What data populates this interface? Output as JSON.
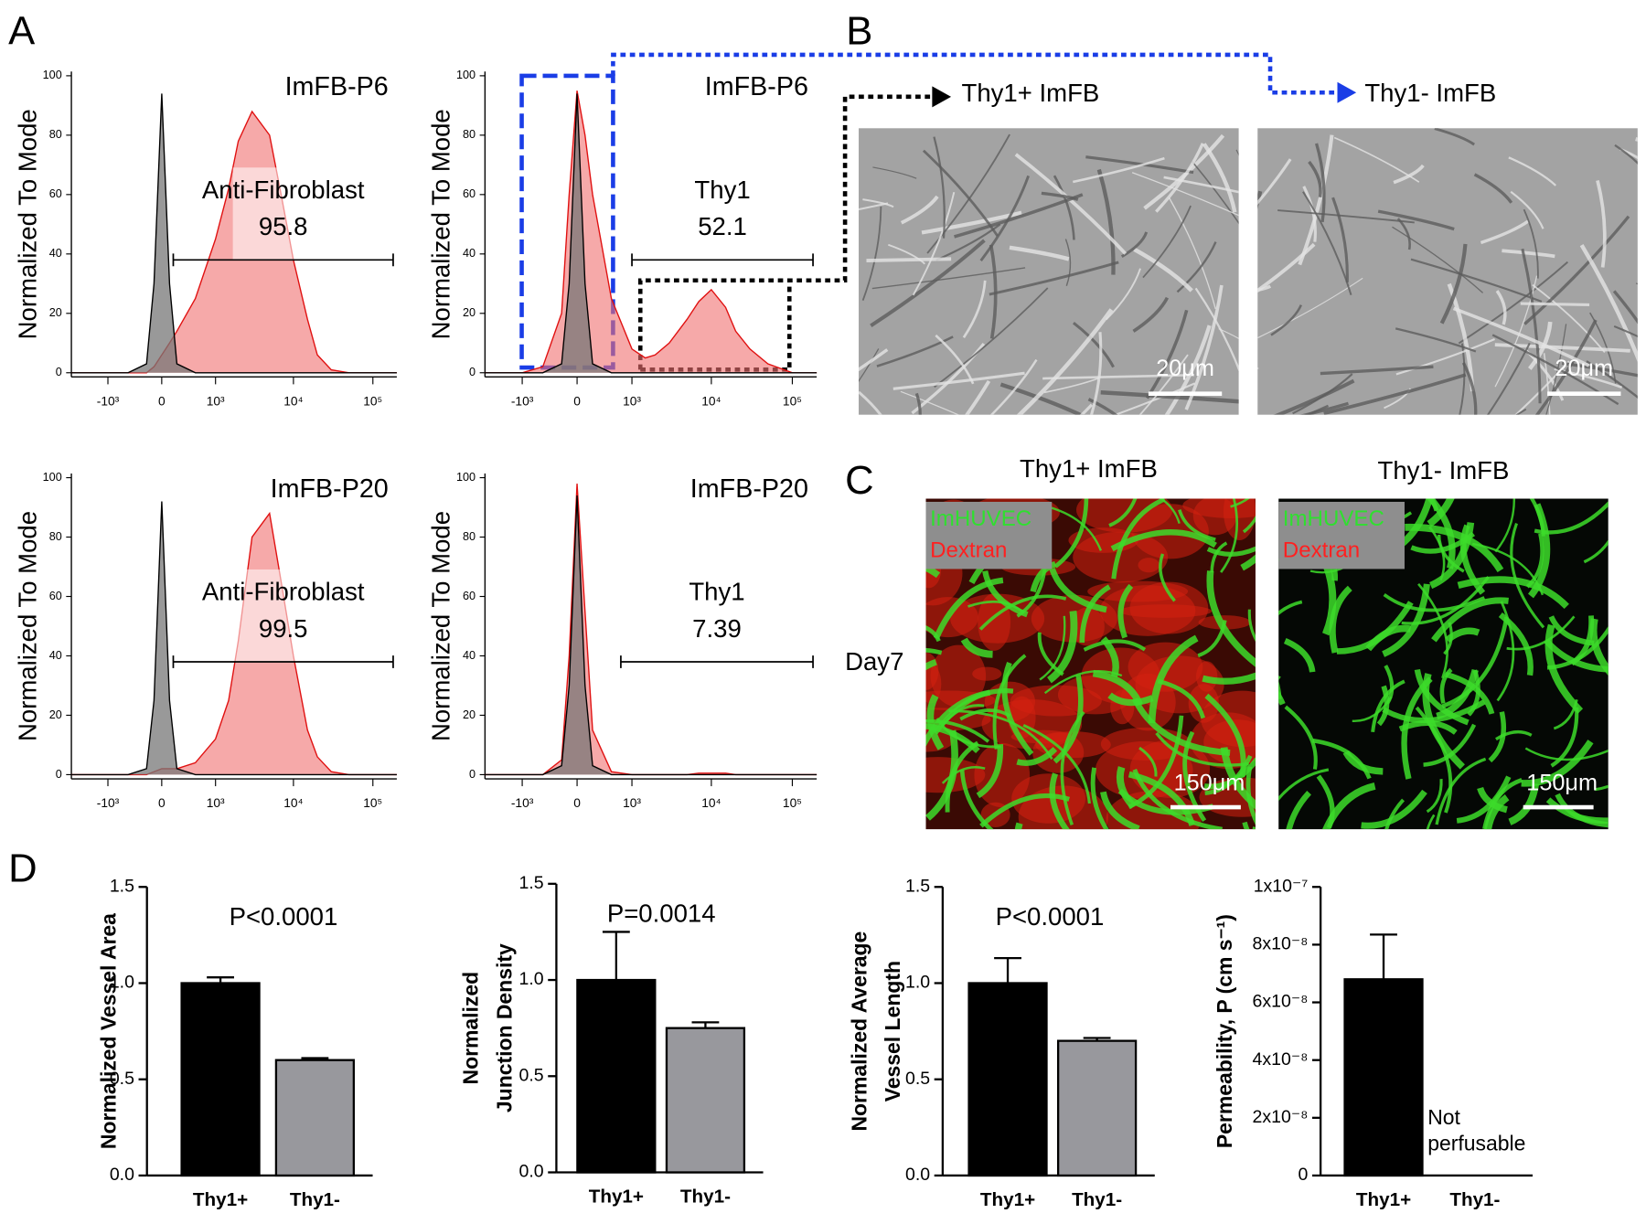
{
  "panels": [
    "A",
    "B",
    "C",
    "D"
  ],
  "phase_contrast": {
    "items": [
      {
        "title": "Thy1+ ImFB",
        "scale_bar": "20μm"
      },
      {
        "title": "Thy1- ImFB",
        "scale_bar": "20μm"
      }
    ]
  },
  "fluorescence": {
    "row_label": "Day7",
    "items": [
      {
        "title": "Thy1+ ImFB",
        "legend": [
          "ImHUVEC",
          "Dextran"
        ],
        "scale_bar": "150μm"
      },
      {
        "title": "Thy1- ImFB",
        "legend": [
          "ImHUVEC",
          "Dextran"
        ],
        "scale_bar": "150μm"
      }
    ]
  },
  "chart_data": [
    {
      "type": "area",
      "title": "ImFB-P6",
      "ylabel": "Normalized To Mode",
      "xscale": "asinh",
      "xlim": [
        -3000,
        200000
      ],
      "xticks": [
        {
          "value": -1000,
          "label": "-10³"
        },
        0,
        {
          "value": 1000,
          "label": "10³"
        },
        {
          "value": 10000,
          "label": "10⁴"
        },
        {
          "value": 100000,
          "label": "10⁵"
        }
      ],
      "ylim": [
        0,
        100
      ],
      "yticks": [
        0,
        20,
        40,
        60,
        80,
        100
      ],
      "x": [
        -3000,
        -1000,
        -500,
        -200,
        -100,
        0,
        100,
        200,
        500,
        1000,
        1500,
        2000,
        3000,
        5000,
        7000,
        10000,
        15000,
        20000,
        30000,
        50000,
        100000,
        200000
      ],
      "series": [
        {
          "color": "#f07070",
          "values": [
            0,
            0,
            0,
            0,
            2,
            6,
            10,
            14,
            25,
            45,
            62,
            78,
            88,
            80,
            60,
            38,
            18,
            6,
            1,
            0,
            0,
            0
          ]
        },
        {
          "color": "#777777",
          "values": [
            0,
            0,
            0,
            3,
            30,
            94,
            30,
            3,
            0,
            0,
            0,
            0,
            0,
            0,
            0,
            0,
            0,
            0,
            0,
            0,
            0,
            0
          ]
        }
      ],
      "gate": [
        150,
        180000
      ],
      "gate_label": "Anti-Fibroblast",
      "gate_value": 95.8
    },
    {
      "type": "area",
      "title": "ImFB-P6",
      "ylabel": "Normalized To Mode",
      "xscale": "asinh",
      "xlim": [
        -3000,
        200000
      ],
      "xticks": [
        {
          "value": -1000,
          "label": "-10³"
        },
        0,
        {
          "value": 1000,
          "label": "10³"
        },
        {
          "value": 10000,
          "label": "10⁴"
        },
        {
          "value": 100000,
          "label": "10⁵"
        }
      ],
      "ylim": [
        0,
        100
      ],
      "yticks": [
        0,
        20,
        40,
        60,
        80,
        100
      ],
      "x": [
        -3000,
        -1000,
        -500,
        -200,
        -100,
        0,
        100,
        200,
        500,
        1000,
        1500,
        2000,
        3000,
        5000,
        7000,
        10000,
        15000,
        20000,
        30000,
        50000,
        100000,
        200000
      ],
      "series": [
        {
          "color": "#f07070",
          "values": [
            0,
            0,
            2,
            20,
            60,
            95,
            80,
            60,
            25,
            8,
            5,
            6,
            10,
            18,
            24,
            28,
            22,
            14,
            8,
            3,
            0,
            0
          ]
        },
        {
          "color": "#777777",
          "values": [
            0,
            0,
            0,
            3,
            30,
            94,
            30,
            3,
            0,
            0,
            0,
            0,
            0,
            0,
            0,
            0,
            0,
            0,
            0,
            0,
            0,
            0
          ]
        }
      ],
      "gate": [
        1000,
        180000
      ],
      "gate_label": "Thy1",
      "gate_value": 52.1
    },
    {
      "type": "area",
      "title": "ImFB-P20",
      "ylabel": "Normalized To Mode",
      "xscale": "asinh",
      "xlim": [
        -3000,
        200000
      ],
      "xticks": [
        {
          "value": -1000,
          "label": "-10³"
        },
        0,
        {
          "value": 1000,
          "label": "10³"
        },
        {
          "value": 10000,
          "label": "10⁴"
        },
        {
          "value": 100000,
          "label": "10⁵"
        }
      ],
      "ylim": [
        0,
        100
      ],
      "yticks": [
        0,
        20,
        40,
        60,
        80,
        100
      ],
      "x": [
        -3000,
        -1000,
        -500,
        -200,
        -100,
        0,
        100,
        200,
        500,
        1000,
        1500,
        2000,
        3000,
        5000,
        7000,
        10000,
        15000,
        20000,
        30000,
        50000,
        100000,
        200000
      ],
      "series": [
        {
          "color": "#f07070",
          "values": [
            0,
            0,
            0,
            0,
            1,
            2,
            2,
            2,
            4,
            12,
            25,
            45,
            80,
            88,
            65,
            40,
            15,
            6,
            1,
            0,
            0,
            0
          ]
        },
        {
          "color": "#777777",
          "values": [
            0,
            0,
            0,
            2,
            25,
            92,
            25,
            2,
            0,
            0,
            0,
            0,
            0,
            0,
            0,
            0,
            0,
            0,
            0,
            0,
            0,
            0
          ]
        }
      ],
      "gate": [
        150,
        180000
      ],
      "gate_label": "Anti-Fibroblast",
      "gate_value": 99.5
    },
    {
      "type": "area",
      "title": "ImFB-P20",
      "ylabel": "Normalized To Mode",
      "xscale": "asinh",
      "xlim": [
        -3000,
        200000
      ],
      "xticks": [
        {
          "value": -1000,
          "label": "-10³"
        },
        0,
        {
          "value": 1000,
          "label": "10³"
        },
        {
          "value": 10000,
          "label": "10⁴"
        },
        {
          "value": 100000,
          "label": "10⁵"
        }
      ],
      "ylim": [
        0,
        100
      ],
      "yticks": [
        0,
        20,
        40,
        60,
        80,
        100
      ],
      "x": [
        -3000,
        -1000,
        -500,
        -200,
        -100,
        0,
        100,
        200,
        500,
        1000,
        1500,
        2000,
        3000,
        5000,
        7000,
        10000,
        15000,
        20000,
        30000,
        50000,
        100000,
        200000
      ],
      "series": [
        {
          "color": "#f07070",
          "values": [
            0,
            0,
            0,
            5,
            40,
            98,
            55,
            15,
            1,
            0,
            0,
            0,
            0,
            0,
            0.5,
            0.5,
            0.5,
            0,
            0,
            0,
            0,
            0
          ]
        },
        {
          "color": "#777777",
          "values": [
            0,
            0,
            0,
            3,
            30,
            94,
            30,
            3,
            0,
            0,
            0,
            0,
            0,
            0,
            0,
            0,
            0,
            0,
            0,
            0,
            0,
            0
          ]
        }
      ],
      "gate": [
        700,
        180000
      ],
      "gate_label": "Thy1",
      "gate_value": 7.39
    },
    {
      "type": "bar",
      "ylabel": [
        "Normalized Vessel Area"
      ],
      "annotation": "P<0.0001",
      "categories": [
        "Thy1+",
        "Thy1-"
      ],
      "colors": [
        "#000000",
        "#98989d"
      ],
      "values": [
        1.0,
        0.6
      ],
      "errors": [
        0.03,
        0.01
      ],
      "ylim": [
        0,
        1.5
      ],
      "yticks": [
        {
          "value": 0,
          "label": "0.0"
        },
        0.5,
        {
          "value": 1,
          "label": "1.0"
        },
        1.5
      ]
    },
    {
      "type": "bar",
      "ylabel": [
        "Normalized",
        "Junction Density"
      ],
      "annotation": "P=0.0014",
      "categories": [
        "Thy1+",
        "Thy1-"
      ],
      "colors": [
        "#000000",
        "#98989d"
      ],
      "values": [
        1.0,
        0.75
      ],
      "errors": [
        0.25,
        0.03
      ],
      "ylim": [
        0,
        1.5
      ],
      "yticks": [
        {
          "value": 0,
          "label": "0.0"
        },
        0.5,
        {
          "value": 1,
          "label": "1.0"
        },
        1.5
      ]
    },
    {
      "type": "bar",
      "ylabel": [
        "Normalized Average",
        "Vessel Length"
      ],
      "annotation": "P<0.0001",
      "categories": [
        "Thy1+",
        "Thy1-"
      ],
      "colors": [
        "#000000",
        "#98989d"
      ],
      "values": [
        1.0,
        0.7
      ],
      "errors": [
        0.13,
        0.015
      ],
      "ylim": [
        0,
        1.5
      ],
      "yticks": [
        {
          "value": 0,
          "label": "0.0"
        },
        0.5,
        {
          "value": 1,
          "label": "1.0"
        },
        1.5
      ]
    },
    {
      "type": "bar",
      "ylabel": [
        "Permeability, P (cm s⁻¹)"
      ],
      "note": [
        "Not",
        "perfusable"
      ],
      "categories": [
        "Thy1+",
        "Thy1-"
      ],
      "colors": [
        "#000000",
        "#98989d"
      ],
      "values": [
        6.8e-08,
        null
      ],
      "errors": [
        1.55e-08,
        null
      ],
      "ylim": [
        0,
        1e-07
      ],
      "yticks": [
        0,
        {
          "value": 2e-08,
          "label": "2x10⁻⁸"
        },
        {
          "value": 4e-08,
          "label": "4x10⁻⁸"
        },
        {
          "value": 6e-08,
          "label": "6x10⁻⁸"
        },
        {
          "value": 8e-08,
          "label": "8x10⁻⁸"
        },
        {
          "value": 1e-07,
          "label": "1x10⁻⁷"
        }
      ]
    }
  ]
}
